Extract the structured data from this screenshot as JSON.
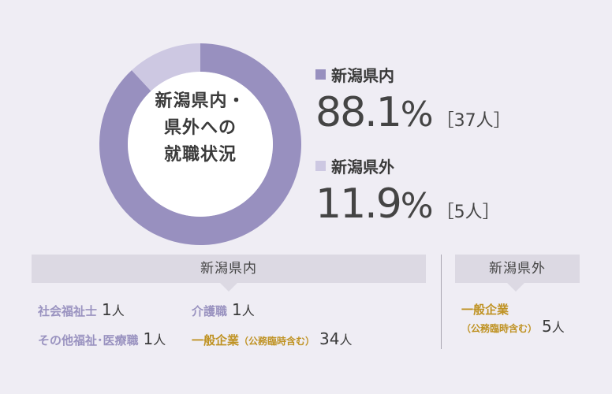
{
  "chart_data": {
    "type": "pie",
    "style": "donut",
    "center_label": [
      "新潟県内・",
      "県外への",
      "就職状況"
    ],
    "slices": [
      {
        "name": "新潟県内",
        "percent": 88.1,
        "count": 37,
        "unit": "人",
        "color": "#9890bf"
      },
      {
        "name": "新潟県外",
        "percent": 11.9,
        "count": 5,
        "unit": "人",
        "color": "#cdc8e2"
      }
    ],
    "display": {
      "inside_pct": "88.1",
      "inside_count": "［37人］",
      "outside_pct": "11.9",
      "outside_count": "［5人］",
      "pct_sign": "%"
    }
  },
  "breakdown": {
    "inside": {
      "title": "新潟県内",
      "items": [
        {
          "label": "社会福祉士",
          "value": "1",
          "unit": "人"
        },
        {
          "label": "介護職",
          "value": "1",
          "unit": "人"
        },
        {
          "label": "その他福祉･医療職",
          "value": "1",
          "unit": "人"
        },
        {
          "label": "一般企業",
          "sub": "（公務臨時含む）",
          "value": "34",
          "unit": "人"
        }
      ]
    },
    "outside": {
      "title": "新潟県外",
      "items": [
        {
          "label": "一般企業",
          "sub": "（公務臨時含む）",
          "value": "5",
          "unit": "人"
        }
      ]
    }
  }
}
